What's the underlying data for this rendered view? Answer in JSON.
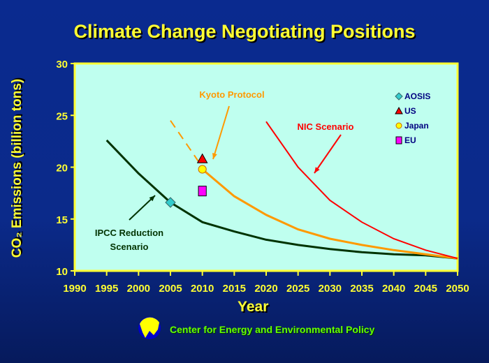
{
  "chart_data": {
    "type": "line",
    "title": "Climate Change Negotiating Positions",
    "xlabel": "Year",
    "ylabel": "CO₂ Emissions (billion tons)",
    "xlim": [
      1990,
      2050
    ],
    "ylim": [
      10,
      30
    ],
    "x_ticks": [
      "1990",
      "1995",
      "2000",
      "2005",
      "2010",
      "2015",
      "2020",
      "2025",
      "2030",
      "2035",
      "2040",
      "2045",
      "2050"
    ],
    "y_ticks": [
      "10",
      "15",
      "20",
      "25",
      "30"
    ],
    "series": [
      {
        "name": "IPCC Reduction Scenario",
        "label_lines": [
          "IPCC Reduction",
          "Scenario"
        ],
        "color": "#003300",
        "x": [
          1995,
          2000,
          2005,
          2010,
          2015,
          2020,
          2025,
          2030,
          2035,
          2040,
          2045,
          2050
        ],
        "y": [
          22.6,
          19.4,
          16.6,
          14.7,
          13.8,
          13.0,
          12.5,
          12.1,
          11.8,
          11.6,
          11.5,
          11.2
        ]
      },
      {
        "name": "Kyoto Protocol",
        "color": "#ff9900",
        "dashed_segment": {
          "x": [
            2005,
            2010
          ],
          "y": [
            24.5,
            20.0
          ]
        },
        "x": [
          2010,
          2015,
          2020,
          2025,
          2030,
          2035,
          2040,
          2045,
          2050
        ],
        "y": [
          19.8,
          17.2,
          15.4,
          14.0,
          13.1,
          12.5,
          12.0,
          11.6,
          11.2
        ]
      },
      {
        "name": "NIC Scenario",
        "color": "#ff0000",
        "x": [
          2020,
          2025,
          2030,
          2035,
          2040,
          2045,
          2050
        ],
        "y": [
          24.4,
          20.0,
          16.8,
          14.7,
          13.1,
          12.0,
          11.2
        ]
      }
    ],
    "points": [
      {
        "name": "AOSIS",
        "x": 2005,
        "y": 16.6,
        "shape": "diamond",
        "color": "#33cccc"
      },
      {
        "name": "US",
        "x": 2010,
        "y": 20.8,
        "shape": "triangle",
        "color": "#ff0000"
      },
      {
        "name": "Japan",
        "x": 2010,
        "y": 19.8,
        "shape": "circle",
        "color": "#ffff00"
      },
      {
        "name": "EU",
        "x": 2010,
        "y": 17.7,
        "shape": "square",
        "color": "#ff00ff"
      }
    ],
    "legend": "top-right",
    "grid": false
  },
  "footer": "Center for Energy and Environmental Policy"
}
